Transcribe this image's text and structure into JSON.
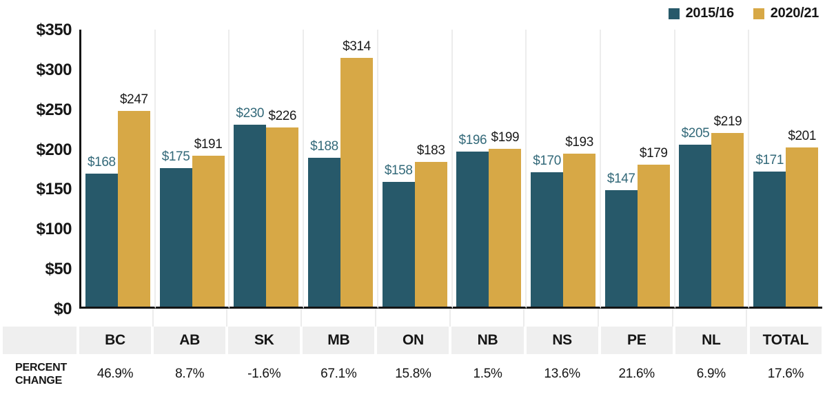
{
  "legend": {
    "position": "top-right",
    "items": [
      {
        "name": "2015/16",
        "label": "2015/16",
        "color": "#27596A"
      },
      {
        "name": "2020/21",
        "label": "2020/21",
        "color": "#D7A846"
      }
    ]
  },
  "colors": {
    "series_2015": "#27596A",
    "series_2020": "#D7A846",
    "label_2015": "#336979",
    "label_2020": "#1A1A1A",
    "axis": "#151515",
    "gridline": "#ECECEC",
    "table_cell_bg": "#EFEFEF",
    "text": "#161616"
  },
  "chart_data": {
    "type": "bar",
    "title": "",
    "xlabel": "",
    "ylabel": "",
    "value_prefix": "$",
    "ylim": [
      0,
      350
    ],
    "y_tick_labels": [
      "$350",
      "$300",
      "$250",
      "$200",
      "$150",
      "$100",
      "$50",
      "$0"
    ],
    "grid": "vertical-only",
    "legend_position": "top-right",
    "categories": [
      "BC",
      "AB",
      "SK",
      "MB",
      "ON",
      "NB",
      "NS",
      "PE",
      "NL",
      "TOTAL"
    ],
    "series": [
      {
        "name": "2015/16",
        "values": [
          168,
          175,
          230,
          188,
          158,
          196,
          170,
          147,
          205,
          171
        ]
      },
      {
        "name": "2020/21",
        "values": [
          247,
          191,
          226,
          314,
          183,
          199,
          193,
          179,
          219,
          201
        ]
      }
    ],
    "percent_change": [
      "46.9%",
      "8.7%",
      "-1.6%",
      "67.1%",
      "15.8%",
      "1.5%",
      "13.6%",
      "21.6%",
      "6.9%",
      "17.6%"
    ]
  },
  "table": {
    "row_label": "PERCENT CHANGE"
  }
}
